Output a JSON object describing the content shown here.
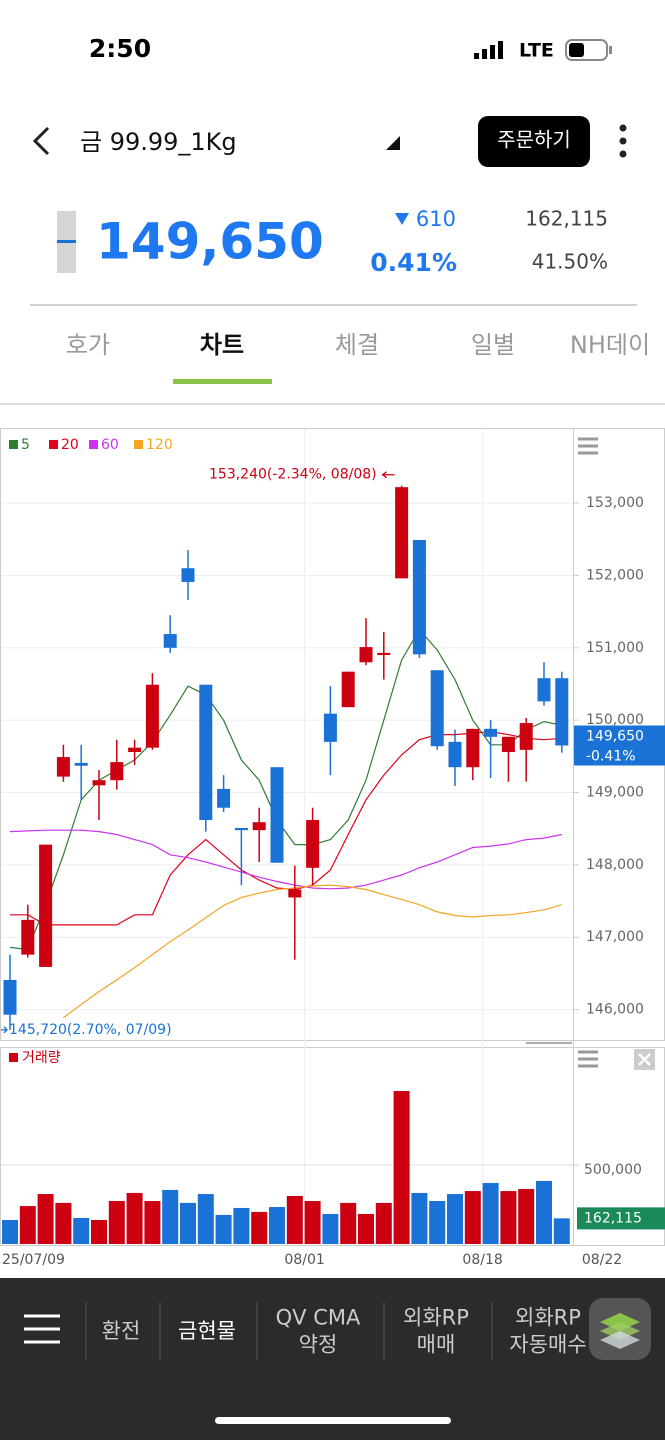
{
  "status": {
    "time": "2:50",
    "network": "LTE"
  },
  "header": {
    "title": "금 99.99_1Kg",
    "order_button": "주문하기"
  },
  "quote": {
    "price": "149,650",
    "change": "610",
    "change_rate": "0.41%",
    "volume": "162,115",
    "ratio": "41.50%"
  },
  "tabs": [
    "호가",
    "차트",
    "체결",
    "일별",
    "NH데이"
  ],
  "nav": [
    [
      "환전"
    ],
    [
      "금현물"
    ],
    [
      "QV CMA",
      "약정"
    ],
    [
      "외화RP",
      "매매"
    ],
    [
      "외화RP",
      "자동매수"
    ]
  ],
  "chart_data": [
    {
      "type": "candlestick",
      "up_color": "#cc0011",
      "down_color": "#1a72d6",
      "ylim": [
        145580,
        154010
      ],
      "yticks": [
        {
          "value": 146000,
          "label": "146,000"
        },
        {
          "value": 147000,
          "label": "147,000"
        },
        {
          "value": 148000,
          "label": "148,000"
        },
        {
          "value": 149000,
          "label": "149,000"
        },
        {
          "value": 150000,
          "label": "150,000"
        },
        {
          "value": 151000,
          "label": "151,000"
        },
        {
          "value": 152000,
          "label": "152,000"
        },
        {
          "value": 153000,
          "label": "153,000"
        }
      ],
      "open": [
        146410,
        146760,
        146590,
        149220,
        149410,
        149100,
        149170,
        149560,
        149620,
        151190,
        152100,
        150490,
        149050,
        148510,
        148480,
        149350,
        147550,
        147960,
        150090,
        150180,
        150800,
        150900,
        151960,
        152490,
        150690,
        149700,
        149350,
        149880,
        149560,
        149590,
        150580,
        150580
      ],
      "high": [
        146760,
        147450,
        148280,
        149660,
        149660,
        149310,
        149730,
        149730,
        150650,
        151450,
        152350,
        150490,
        149240,
        148510,
        148790,
        149350,
        147990,
        148790,
        150470,
        150670,
        151410,
        151220,
        153240,
        152490,
        150690,
        149870,
        149880,
        150000,
        149770,
        150030,
        150800,
        150670
      ],
      "low": [
        145720,
        146720,
        146590,
        149150,
        148900,
        148620,
        149040,
        149380,
        149590,
        150930,
        151660,
        148460,
        148730,
        147720,
        148040,
        148030,
        146690,
        147720,
        149240,
        150180,
        150760,
        150560,
        151960,
        150860,
        149590,
        149090,
        149170,
        149200,
        149150,
        149150,
        150200,
        149550
      ],
      "close": [
        145930,
        147240,
        148280,
        149490,
        149370,
        149170,
        149420,
        149620,
        150490,
        151000,
        151910,
        148620,
        148790,
        148480,
        148590,
        148030,
        147660,
        148620,
        149700,
        150670,
        151010,
        150930,
        153220,
        150910,
        149640,
        149350,
        149880,
        149770,
        149770,
        149960,
        150260,
        149650
      ],
      "series": [
        {
          "name": "5",
          "color": "#2e7d32",
          "values": [
            146860,
            146830,
            147450,
            148140,
            148900,
            149170,
            149310,
            149450,
            149700,
            150070,
            150470,
            150350,
            150000,
            149450,
            149170,
            148620,
            148280,
            148280,
            148350,
            148620,
            149170,
            150000,
            150830,
            151250,
            150970,
            150560,
            150000,
            149660,
            149660,
            149870,
            149980,
            149930
          ]
        },
        {
          "name": "20",
          "color": "#e0001b",
          "values": [
            147310,
            147310,
            147170,
            147170,
            147170,
            147170,
            147170,
            147310,
            147310,
            147860,
            148140,
            148350,
            148140,
            147930,
            147790,
            147680,
            147660,
            147720,
            147930,
            148420,
            148900,
            149240,
            149520,
            149730,
            149800,
            149800,
            149820,
            149840,
            149800,
            149750,
            149730,
            149750
          ]
        },
        {
          "name": "60",
          "color": "#cc33ee",
          "values": [
            148460,
            148470,
            148480,
            148480,
            148480,
            148460,
            148420,
            148350,
            148280,
            148140,
            148100,
            148040,
            147970,
            147900,
            147830,
            147770,
            147720,
            147680,
            147670,
            147680,
            147720,
            147790,
            147860,
            147960,
            148040,
            148140,
            148240,
            148260,
            148290,
            148350,
            148370,
            148420
          ]
        },
        {
          "name": "120",
          "color": "#f5a623",
          "values": [
            null,
            null,
            null,
            145890,
            146070,
            146250,
            146410,
            146580,
            146760,
            146940,
            147100,
            147270,
            147440,
            147550,
            147610,
            147660,
            147680,
            147710,
            147720,
            147700,
            147660,
            147590,
            147520,
            147450,
            147350,
            147300,
            147280,
            147300,
            147310,
            147340,
            147380,
            147450
          ]
        }
      ],
      "annotations": [
        "153,240(-2.34%, 08/08)",
        "145,720(2.70%, 07/09)"
      ],
      "current_price_label": "149,650",
      "current_change_label": "-0.41%"
    },
    {
      "type": "bar",
      "series": [
        {
          "name": "거래량",
          "color": "#cc0011",
          "values": [
            152000,
            240000,
            316000,
            260000,
            165000,
            152000,
            272000,
            323000,
            272000,
            342000,
            260000,
            316000,
            184000,
            228000,
            203000,
            234000,
            304000,
            272000,
            190000,
            260000,
            190000,
            260000,
            968000,
            323000,
            272000,
            316000,
            335000,
            386000,
            335000,
            348000,
            399000,
            162115
          ]
        }
      ],
      "ylim": [
        0,
        1240000
      ],
      "yticks": [
        {
          "value": 500000,
          "label": "500,000"
        }
      ],
      "categories": [
        "25/07/09",
        null,
        null,
        null,
        null,
        null,
        null,
        null,
        null,
        null,
        null,
        null,
        null,
        null,
        null,
        null,
        null,
        "08/01",
        null,
        null,
        null,
        null,
        null,
        null,
        null,
        null,
        null,
        "08/18",
        null,
        null,
        null,
        "08/22"
      ],
      "current_label": "162,115"
    }
  ]
}
